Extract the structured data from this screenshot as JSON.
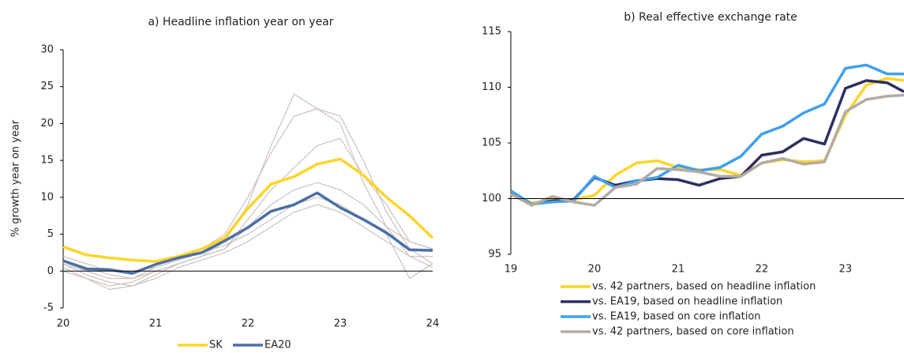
{
  "chart_data": [
    {
      "type": "line",
      "title": "a) Headline inflation year on year",
      "y_label": "% growth year on year",
      "x": [
        20,
        20.25,
        20.5,
        20.75,
        21,
        21.25,
        21.5,
        21.75,
        22,
        22.25,
        22.5,
        22.75,
        23,
        23.25,
        23.5,
        23.75,
        24
      ],
      "xlim": [
        20,
        24
      ],
      "xticks": [
        20,
        21,
        22,
        23,
        24
      ],
      "ylim": [
        -5,
        30
      ],
      "yticks": [
        -5,
        0,
        5,
        10,
        15,
        20,
        25,
        30
      ],
      "baseline": 0,
      "legend": "bottom",
      "series": [
        {
          "color": "#cbc2bd",
          "values": [
            1,
            0,
            -1,
            -1,
            0,
            1,
            2,
            4,
            9,
            17,
            24,
            22,
            21,
            15,
            8,
            3,
            1
          ]
        },
        {
          "color": "#cbc2bd",
          "values": [
            2,
            1,
            0,
            0,
            0.5,
            1.5,
            3,
            5,
            10,
            16,
            21,
            22,
            20,
            12,
            6,
            2,
            2
          ]
        },
        {
          "color": "#cbc2bd",
          "values": [
            1,
            -0.5,
            -1.5,
            -2,
            -0.5,
            1,
            2,
            3,
            7,
            11,
            14,
            17,
            18,
            13,
            9,
            4,
            3
          ]
        },
        {
          "color": "#cbc2bd",
          "values": [
            0.5,
            -1,
            -2,
            -1.5,
            0,
            1,
            2,
            3,
            6,
            9,
            11,
            12,
            11,
            9,
            6,
            4,
            3
          ]
        },
        {
          "color": "#cbc2bd",
          "values": [
            1.5,
            0.5,
            -0.5,
            -1,
            0.5,
            1.5,
            2.5,
            3.5,
            5,
            7,
            9,
            10,
            9,
            7,
            5,
            -1,
            1
          ]
        },
        {
          "color": "#cbc2bd",
          "values": [
            0,
            -1,
            -2.5,
            -2,
            -1,
            0.5,
            1.5,
            2.5,
            4,
            6,
            8,
            9,
            8,
            6,
            4,
            2,
            0.5
          ]
        },
        {
          "name": "SK",
          "color": "#ffd42a",
          "values": [
            3.3,
            2.2,
            1.8,
            1.5,
            1.3,
            2,
            3,
            4.5,
            8.5,
            11.8,
            12.8,
            14.5,
            15.2,
            13,
            10,
            7.5,
            4.5
          ]
        },
        {
          "name": "EA20",
          "color": "#4a6fa5",
          "values": [
            1.4,
            0.3,
            0.2,
            -0.3,
            0.9,
            1.8,
            2.5,
            4.1,
            5.9,
            8.1,
            9,
            10.6,
            8.6,
            7,
            5.2,
            2.9,
            2.8
          ]
        }
      ]
    },
    {
      "type": "line",
      "title": "b) Real effective exchange rate",
      "x": [
        19,
        19.25,
        19.5,
        19.75,
        20,
        20.25,
        20.5,
        20.75,
        21,
        21.25,
        21.5,
        21.75,
        22,
        22.25,
        22.5,
        22.75,
        23,
        23.25,
        23.5,
        23.7
      ],
      "xlim": [
        19,
        23.7
      ],
      "xticks": [
        19,
        20,
        21,
        22,
        23
      ],
      "ylim": [
        95,
        115
      ],
      "yticks": [
        95,
        100,
        105,
        110,
        115
      ],
      "baseline": 100,
      "legend": "bottom-list",
      "series": [
        {
          "name": "vs. 42 partners, based on headline inflation",
          "color": "#ffd42a",
          "values": [
            100.5,
            99.6,
            99.9,
            99.9,
            100.3,
            102.1,
            103.2,
            103.4,
            102.8,
            102.6,
            102.6,
            102.1,
            103.2,
            103.5,
            103.3,
            103.4,
            107.5,
            110.2,
            110.8,
            110.6
          ]
        },
        {
          "name": "vs. EA19, based on headline inflation",
          "color": "#2d2f5e",
          "values": [
            100.6,
            99.5,
            99.8,
            99.9,
            101.9,
            101.2,
            101.6,
            101.8,
            101.7,
            101.2,
            101.8,
            102.0,
            103.9,
            104.2,
            105.4,
            104.9,
            109.9,
            110.6,
            110.4,
            109.6
          ]
        },
        {
          "name": "vs. EA19, based on core inflation",
          "color": "#3fa0ec",
          "values": [
            100.7,
            99.5,
            99.7,
            99.8,
            102.0,
            101.0,
            101.6,
            101.9,
            103.0,
            102.5,
            102.8,
            103.8,
            105.8,
            106.5,
            107.7,
            108.5,
            111.7,
            112.0,
            111.2,
            111.2
          ]
        },
        {
          "name": "vs. 42 partners, based on core inflation",
          "color": "#b5aba5",
          "values": [
            100.4,
            99.4,
            100.2,
            99.7,
            99.4,
            101.0,
            101.3,
            102.7,
            102.6,
            102.4,
            102.0,
            102.0,
            103.2,
            103.6,
            103.1,
            103.3,
            107.8,
            108.9,
            109.2,
            109.3
          ]
        }
      ]
    }
  ]
}
